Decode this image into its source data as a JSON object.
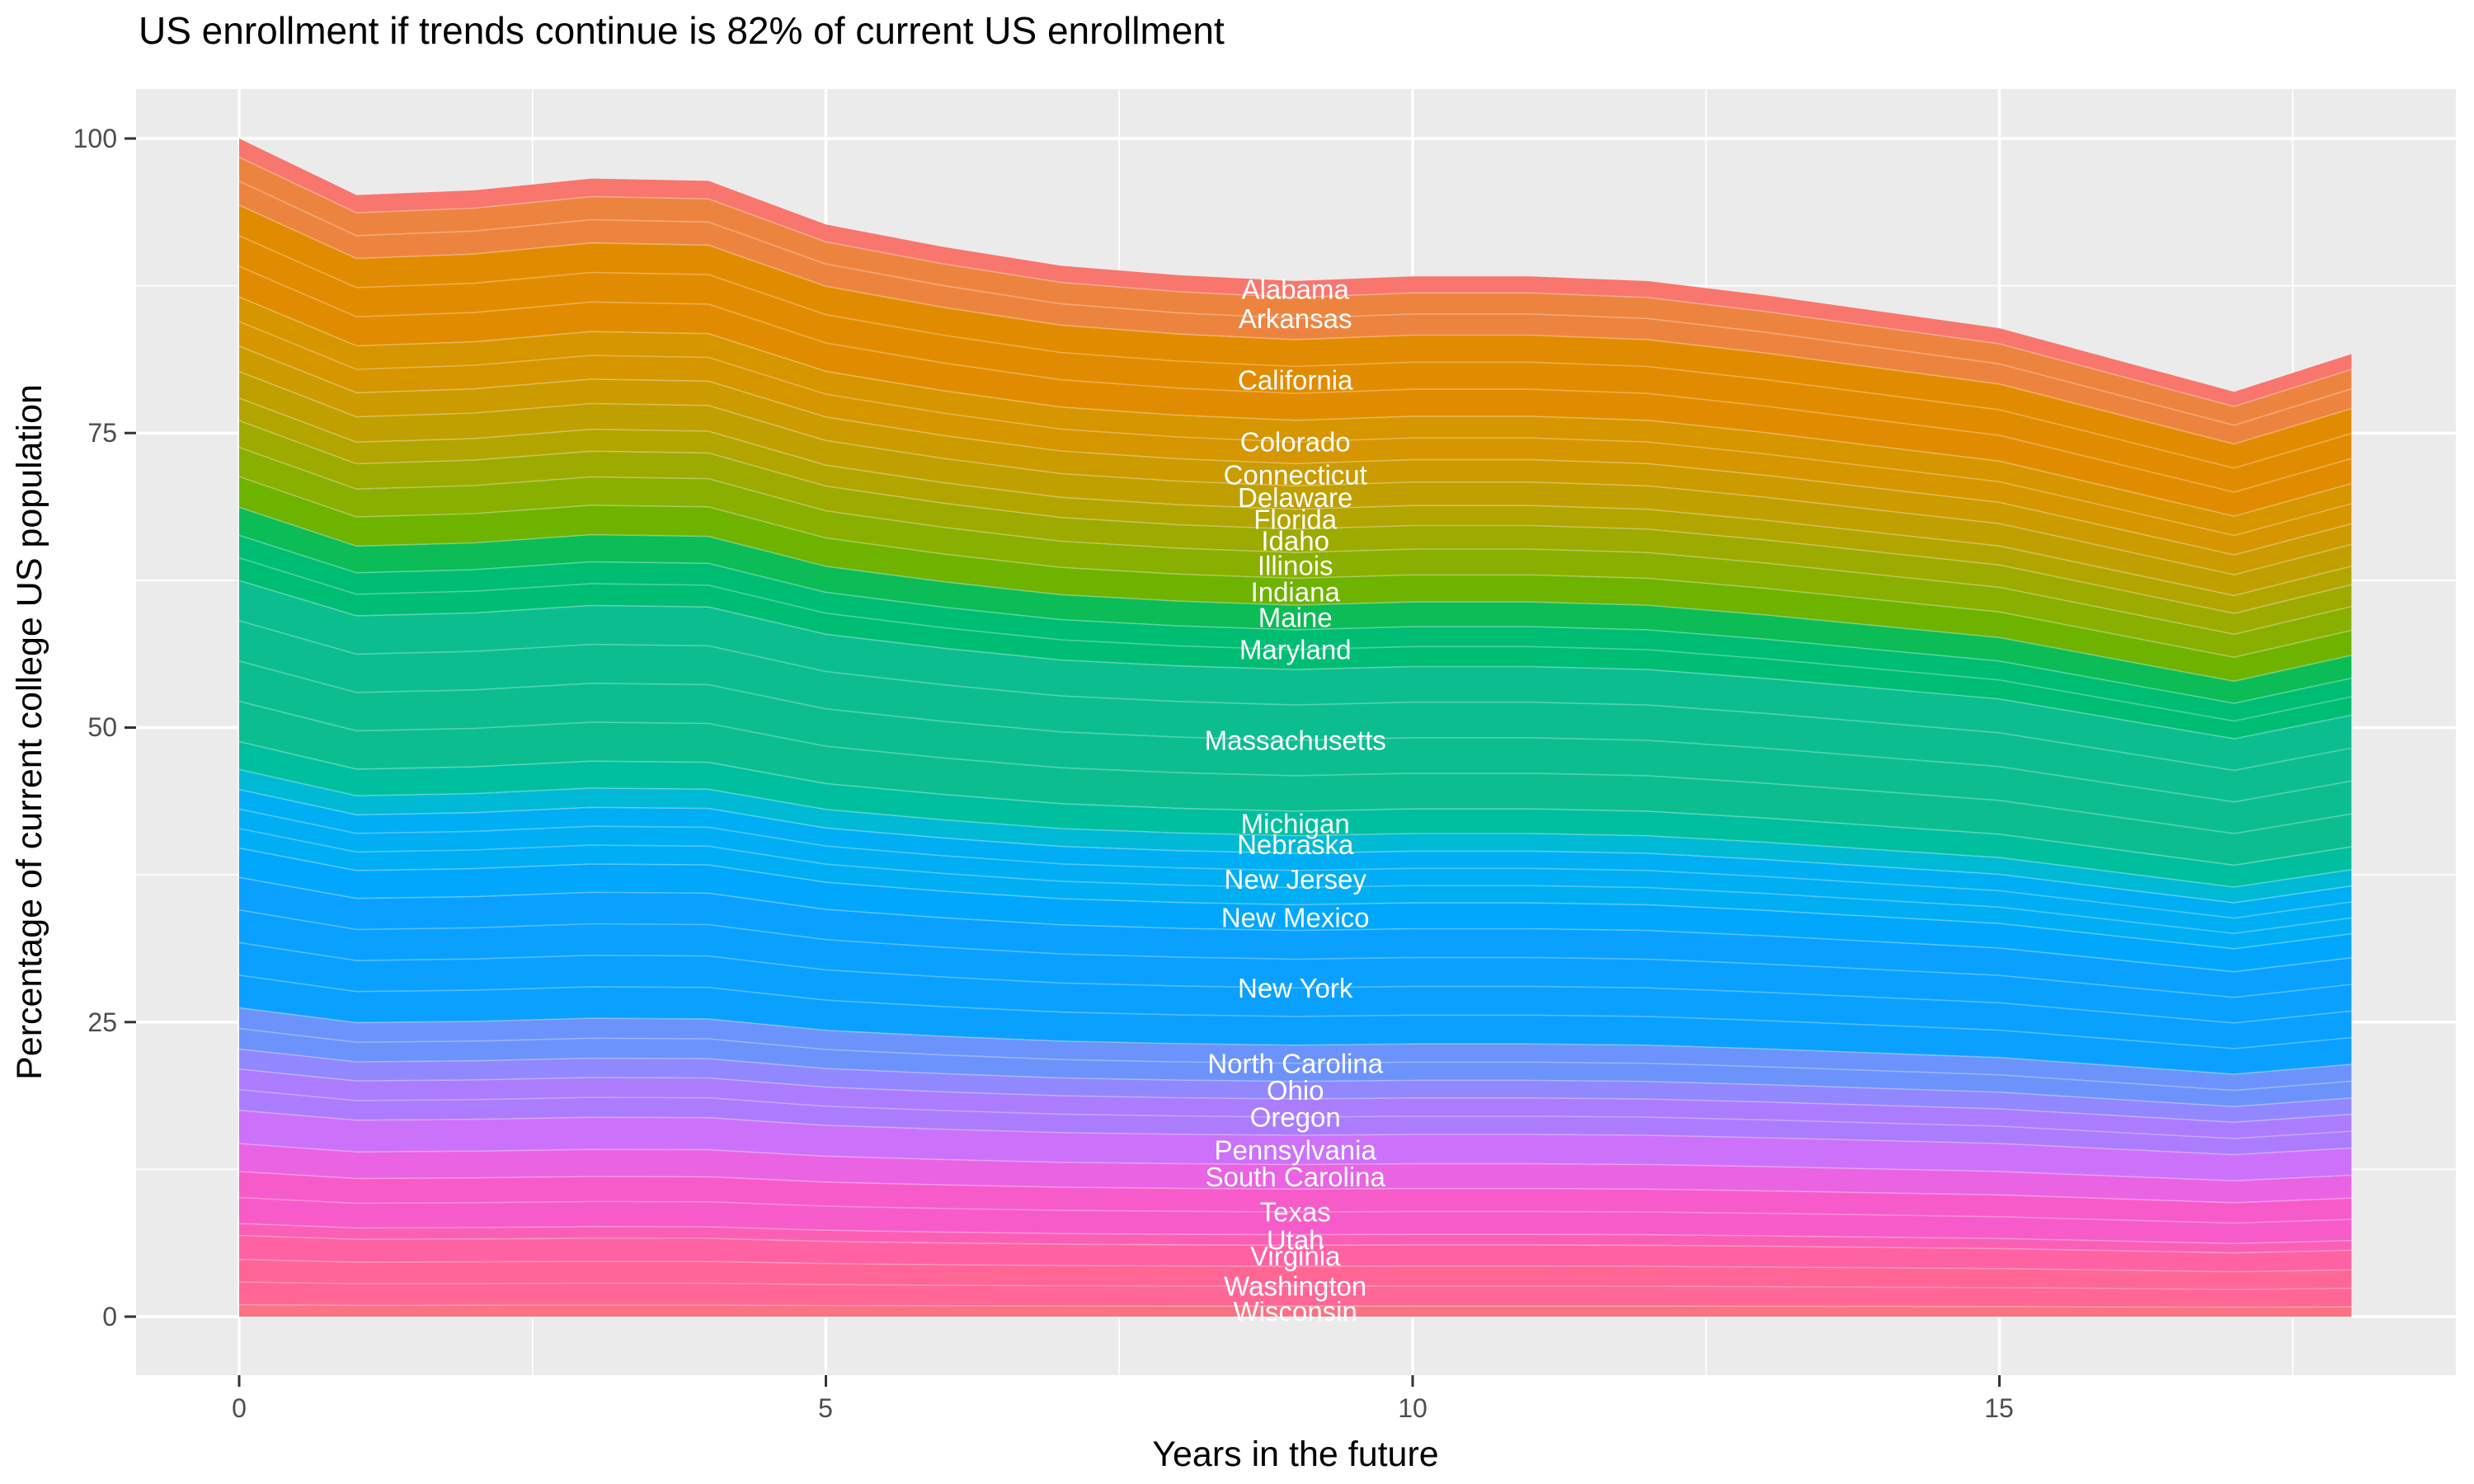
{
  "chart_data": {
    "type": "area",
    "stacked": true,
    "title": "US enrollment if trends continue is 82% of current US enrollment",
    "xlabel": "Years in the future",
    "ylabel": "Percentage of current college US population",
    "x": [
      0,
      1,
      2,
      3,
      4,
      5,
      6,
      7,
      8,
      9,
      10,
      11,
      12,
      13,
      14,
      15,
      16,
      17,
      18
    ],
    "totals_pct_by_year": [
      100,
      95.2,
      95.6,
      96.6,
      96.4,
      92.7,
      90.8,
      89.2,
      88.4,
      87.9,
      88.3,
      88.3,
      87.9,
      86.7,
      85.3,
      83.9,
      81.2,
      78.5,
      81.7
    ],
    "x_ticks": [
      "0",
      "5",
      "10",
      "15"
    ],
    "x_tick_values": [
      0,
      5,
      10,
      15
    ],
    "y_ticks": [
      "0",
      "25",
      "50",
      "75",
      "100"
    ],
    "y_tick_values": [
      0,
      25,
      50,
      75,
      100
    ],
    "x_minor_ticks": [
      2.5,
      7.5,
      12.5,
      17.5
    ],
    "y_minor_ticks": [
      12.5,
      37.5,
      62.5,
      87.5
    ],
    "xlim": [
      -0.88,
      18.93
    ],
    "ylim": [
      -5,
      104.2
    ],
    "legend_position": "none",
    "grid": {
      "background": "#EBEBEB",
      "major_color": "#FFFFFF",
      "minor_color": "#FFFFFF"
    },
    "label_x": 9,
    "series": [
      {
        "name": "Alabama",
        "color": "#F8766D",
        "share": 1.4
      },
      {
        "name": "Arkansas",
        "color": "#EC8440",
        "share": 3.6
      },
      {
        "name": "California",
        "color": "#E18C00",
        "share": 6.9
      },
      {
        "name": "Colorado",
        "color": "#D69600",
        "share": 3.7
      },
      {
        "name": "Connecticut",
        "color": "#CB9B00",
        "share": 1.9
      },
      {
        "name": "Delaware",
        "color": "#C0A000",
        "share": 2.0
      },
      {
        "name": "Florida",
        "color": "#B3A500",
        "share": 1.7
      },
      {
        "name": "Idaho",
        "color": "#9DAB00",
        "share": 2.0
      },
      {
        "name": "Illinois",
        "color": "#89AF00",
        "share": 2.2
      },
      {
        "name": "Indiana",
        "color": "#6DB300",
        "share": 2.3
      },
      {
        "name": "Maine",
        "color": "#0CBC57",
        "share": 2.1
      },
      {
        "name": "Maryland",
        "color": "#00BD74",
        "share": 3.4
      },
      {
        "name": "Massachusetts",
        "color": "#0CBE8F",
        "share": 12.1
      },
      {
        "name": "Michigan",
        "color": "#00BF9F",
        "share": 2.1
      },
      {
        "name": "Nebraska",
        "color": "#00B9D5",
        "share": 1.5
      },
      {
        "name": "New Jersey",
        "color": "#00AEF4",
        "share": 4.4
      },
      {
        "name": "New Mexico",
        "color": "#00A7FC",
        "share": 2.2
      },
      {
        "name": "New York",
        "color": "#0AA0FF",
        "share": 9.8
      },
      {
        "name": "North Carolina",
        "color": "#6C93FC",
        "share": 3.1
      },
      {
        "name": "Ohio",
        "color": "#9187FF",
        "share": 1.5
      },
      {
        "name": "Oregon",
        "color": "#AC7CFF",
        "share": 3.1
      },
      {
        "name": "Pennsylvania",
        "color": "#CC72FA",
        "share": 2.5
      },
      {
        "name": "South Carolina",
        "color": "#E963E3",
        "share": 2.1
      },
      {
        "name": "Texas",
        "color": "#F75BC9",
        "share": 3.9
      },
      {
        "name": "Utah",
        "color": "#FB5FB5",
        "share": 0.9
      },
      {
        "name": "Virginia",
        "color": "#FE62A3",
        "share": 1.8
      },
      {
        "name": "Washington",
        "color": "#FF6695",
        "share": 3.4
      },
      {
        "name": "Wisconsin",
        "color": "#FB7283",
        "share": 0.9
      }
    ]
  }
}
